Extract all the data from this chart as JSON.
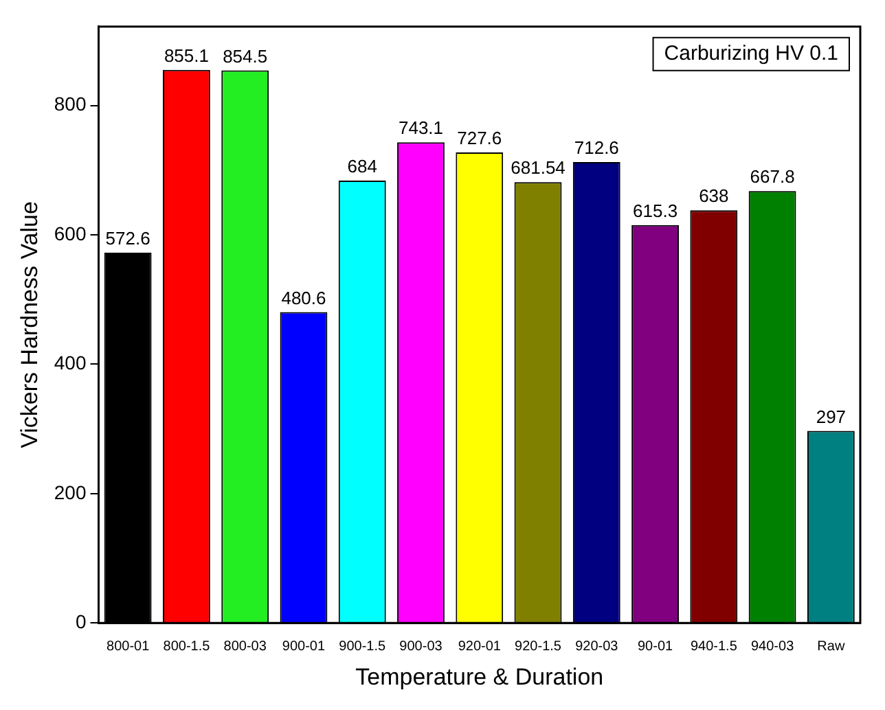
{
  "chart_data": {
    "type": "bar",
    "xlabel": "Temperature & Duration",
    "ylabel": "Vickers Hardness Value",
    "annotations": [
      "Carburizing HV 0.1"
    ],
    "categories": [
      "800-01",
      "800-1.5",
      "800-03",
      "900-01",
      "900-1.5",
      "900-03",
      "920-01",
      "920-1.5",
      "920-03",
      "90-01",
      "940-1.5",
      "940-03",
      "Raw"
    ],
    "values": [
      572.6,
      855.1,
      854.5,
      480.6,
      684,
      743.1,
      727.6,
      681.54,
      712.6,
      615.3,
      638,
      667.8,
      297
    ],
    "colors": [
      "#000000",
      "#ff0000",
      "#22ee22",
      "#0000ff",
      "#00ffff",
      "#ff00ff",
      "#ffff00",
      "#808000",
      "#000080",
      "#800080",
      "#800000",
      "#008000",
      "#008080"
    ],
    "ylim": [
      0,
      922
    ],
    "yticks": [
      0,
      200,
      400,
      600,
      800
    ],
    "data_labels": true,
    "grid": false,
    "legend": false
  }
}
